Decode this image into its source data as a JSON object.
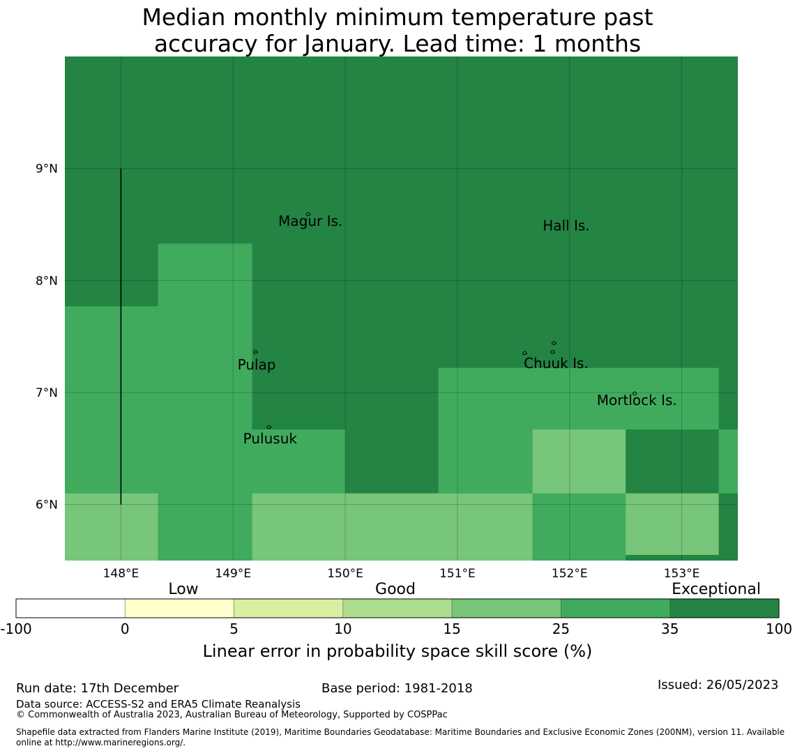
{
  "title": "Median monthly minimum temperature past\naccuracy for January. Lead time: 1 months",
  "map": {
    "lon_range": [
      147.5,
      153.5
    ],
    "lat_range": [
      5.5,
      10.0
    ],
    "lon_ticks": [
      {
        "value": 148,
        "label": "148°E"
      },
      {
        "value": 149,
        "label": "149°E"
      },
      {
        "value": 150,
        "label": "150°E"
      },
      {
        "value": 151,
        "label": "151°E"
      },
      {
        "value": 152,
        "label": "152°E"
      },
      {
        "value": 153,
        "label": "153°E"
      }
    ],
    "lat_ticks": [
      {
        "value": 9,
        "label": "9°N"
      },
      {
        "value": 8,
        "label": "8°N"
      },
      {
        "value": 7,
        "label": "7°N"
      },
      {
        "value": 6,
        "label": "6°N"
      }
    ],
    "background_class": "exceptional",
    "regions": [
      {
        "lon": [
          147.5,
          148.33
        ],
        "lat": [
          5.5,
          6.1
        ],
        "class": "good_high"
      },
      {
        "lon": [
          147.5,
          148.33
        ],
        "lat": [
          6.1,
          7.77
        ],
        "class": "very_good"
      },
      {
        "lon": [
          148.33,
          149.17
        ],
        "lat": [
          5.5,
          8.33
        ],
        "class": "very_good"
      },
      {
        "lon": [
          149.17,
          150.0
        ],
        "lat": [
          6.1,
          6.67
        ],
        "class": "very_good"
      },
      {
        "lon": [
          149.17,
          151.67
        ],
        "lat": [
          5.5,
          6.1
        ],
        "class": "good_high"
      },
      {
        "lon": [
          150.83,
          151.67
        ],
        "lat": [
          6.1,
          7.22
        ],
        "class": "very_good"
      },
      {
        "lon": [
          151.67,
          153.33
        ],
        "lat": [
          6.67,
          7.22
        ],
        "class": "very_good"
      },
      {
        "lon": [
          151.67,
          152.5
        ],
        "lat": [
          6.1,
          6.67
        ],
        "class": "good_high"
      },
      {
        "lon": [
          151.67,
          152.5
        ],
        "lat": [
          5.5,
          6.1
        ],
        "class": "very_good"
      },
      {
        "lon": [
          152.5,
          153.33
        ],
        "lat": [
          5.55,
          6.1
        ],
        "class": "good_high"
      },
      {
        "lon": [
          153.33,
          153.5
        ],
        "lat": [
          6.1,
          6.67
        ],
        "class": "very_good"
      }
    ],
    "vertical_line": {
      "lon": 148.0,
      "lat": [
        6.0,
        9.0
      ]
    },
    "places": [
      {
        "name": "Magur Is.",
        "lon": 149.69,
        "lat": 8.53
      },
      {
        "name": "Hall Is.",
        "lon": 151.97,
        "lat": 8.49
      },
      {
        "name": "Pulap",
        "lon": 149.21,
        "lat": 7.25
      },
      {
        "name": "Chuuk Is.",
        "lon": 151.88,
        "lat": 7.26
      },
      {
        "name": "Mortlock Is.",
        "lon": 152.6,
        "lat": 6.93
      },
      {
        "name": "Pulusuk",
        "lon": 149.33,
        "lat": 6.59
      }
    ],
    "islands": [
      {
        "lon": 149.67,
        "lat": 8.6
      },
      {
        "lon": 149.2,
        "lat": 7.37
      },
      {
        "lon": 149.32,
        "lat": 6.7
      },
      {
        "lon": 151.6,
        "lat": 7.36
      },
      {
        "lon": 151.85,
        "lat": 7.37
      },
      {
        "lon": 151.86,
        "lat": 7.45
      },
      {
        "lon": 152.58,
        "lat": 7.0
      }
    ]
  },
  "colorbar": {
    "words": [
      "Low",
      "Good",
      "Exceptional"
    ],
    "bins": [
      {
        "from": "-100",
        "to": "0",
        "color": "#ffffff"
      },
      {
        "from": "0",
        "to": "5",
        "color": "#ffffcc"
      },
      {
        "from": "5",
        "to": "10",
        "color": "#d9f0a3"
      },
      {
        "from": "10",
        "to": "15",
        "color": "#addd8e"
      },
      {
        "from": "15",
        "to": "25",
        "color": "#78c679"
      },
      {
        "from": "25",
        "to": "35",
        "color": "#41ab5d"
      },
      {
        "from": "35",
        "to": "100",
        "color": "#238443"
      }
    ],
    "labels": [
      "-100",
      "0",
      "5",
      "10",
      "15",
      "25",
      "35",
      "100"
    ],
    "title": "Linear error in probability space skill score (%)"
  },
  "class_colors": {
    "exceptional": "#238443",
    "very_good": "#41ab5d",
    "good_high": "#78c679"
  },
  "footer": {
    "run_date": "Run date: 17th December",
    "base_period": "Base period: 1981-2018",
    "issued": "Issued: 26/05/2023",
    "data_source": "Data source: ACCESS-S2 and ERA5 Climate Reanalysis",
    "copyright": "© Commonwealth of Australia 2023, Australian Bureau of Meteorology, Supported by COSPPac",
    "shapefile": "Shapefile data extracted from Flanders Marine Institute (2019), Maritime Boundaries Geodatabase: Maritime Boundaries and Exclusive Economic Zones (200NM), version 11. Available online at http://www.marineregions.org/."
  }
}
